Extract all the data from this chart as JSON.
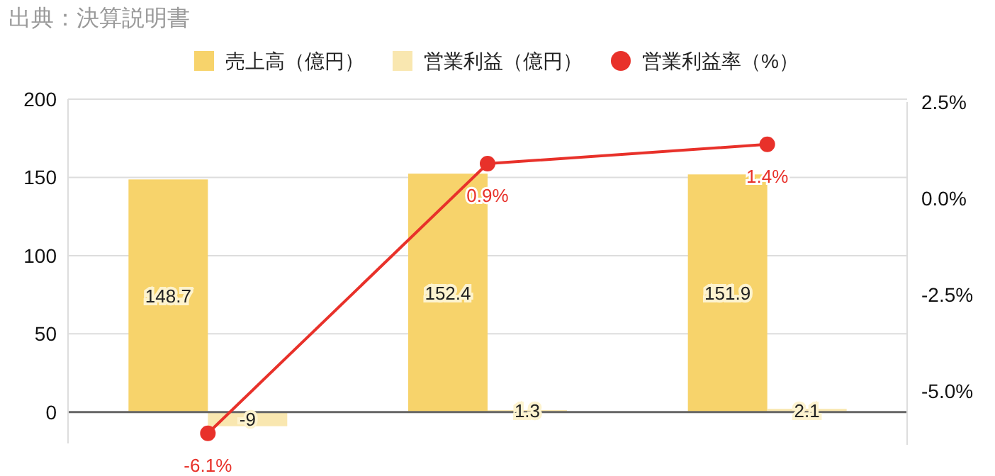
{
  "chart_data": {
    "type": "bar",
    "annotations": [
      "出典：決算説明書"
    ],
    "categories": [
      null,
      null,
      null
    ],
    "series": [
      {
        "name": "売上高（億円）",
        "color": "#f7d36b",
        "values": [
          148.7,
          152.4,
          151.9
        ],
        "value_labels": [
          "148.7",
          "152.4",
          "151.9"
        ]
      },
      {
        "name": "営業利益（億円）",
        "color": "#f9e7b0",
        "values": [
          -9,
          1.3,
          2.1
        ],
        "value_labels": [
          "-9",
          "1.3",
          "2.1"
        ]
      },
      {
        "name": "営業利益率（%）",
        "type": "line",
        "axis": "y2",
        "color": "#e8312a",
        "values": [
          -6.1,
          0.9,
          1.4
        ],
        "value_labels": [
          "-6.1%",
          "0.9%",
          "1.4%"
        ]
      }
    ],
    "ylim": [
      -20,
      200
    ],
    "yticks": [
      0,
      50,
      100,
      150,
      200
    ],
    "y2lim": [
      -6.4,
      2.5
    ],
    "y2ticks": [
      {
        "value": 2.5,
        "label": "2.5%"
      },
      {
        "value": 0,
        "label": "0.0%"
      },
      {
        "value": -2.5,
        "label": "-2.5%"
      },
      {
        "value": -5,
        "label": "-5.0%"
      }
    ],
    "grid": "y",
    "legend": "top",
    "marker": "circle",
    "line_style": "solid"
  }
}
